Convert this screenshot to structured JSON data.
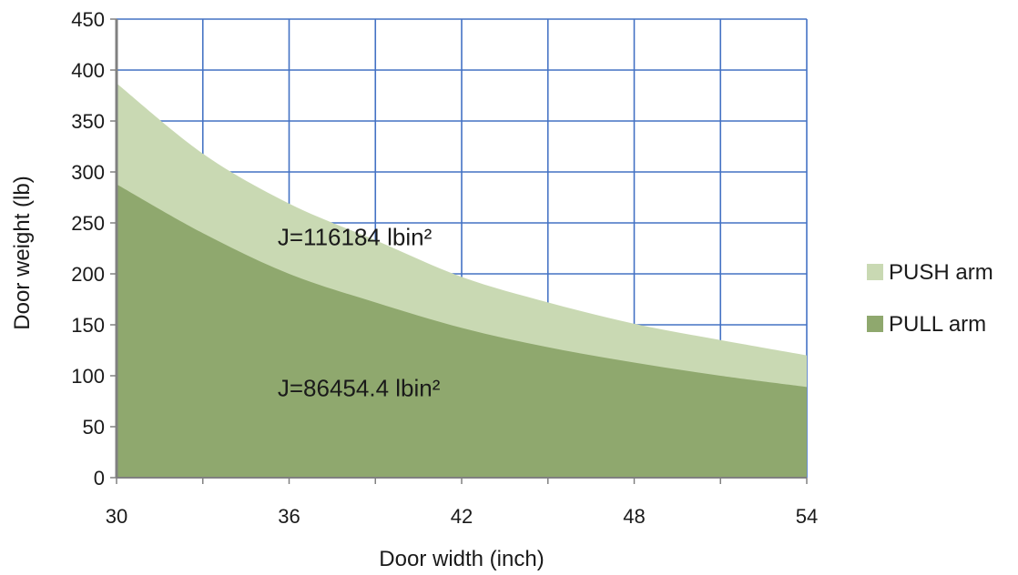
{
  "chart_data": {
    "type": "area",
    "title": "",
    "xlabel": "Door width (inch)",
    "ylabel": "Door weight (lb)",
    "xlim": [
      30,
      54
    ],
    "ylim": [
      0,
      450
    ],
    "x_ticks": [
      30,
      36,
      42,
      48,
      54
    ],
    "x_tick_labels": [
      "30",
      "36",
      "42",
      "48",
      "54"
    ],
    "y_ticks": [
      0,
      50,
      100,
      150,
      200,
      250,
      300,
      350,
      400,
      450
    ],
    "y_tick_labels": [
      "0",
      "50",
      "100",
      "150",
      "200",
      "250",
      "300",
      "350",
      "400",
      "450"
    ],
    "grid_x": [
      30,
      33,
      36,
      39,
      42,
      45,
      48,
      51,
      54
    ],
    "grid_y": [
      0,
      50,
      100,
      150,
      200,
      250,
      300,
      350,
      400,
      450
    ],
    "grid": true,
    "legend_position": "right",
    "series": [
      {
        "name": "PUSH arm",
        "color": "#c9d9b3",
        "x": [
          30,
          33,
          36,
          39,
          42,
          45,
          48,
          51,
          54
        ],
        "values": [
          387,
          318,
          269,
          233,
          197,
          172,
          151,
          135,
          120
        ]
      },
      {
        "name": "PULL arm",
        "color": "#8fa86e",
        "x": [
          30,
          33,
          36,
          39,
          42,
          45,
          48,
          51,
          54
        ],
        "values": [
          288,
          240,
          200,
          172,
          147,
          128,
          113,
          100,
          89
        ]
      }
    ],
    "annotations": [
      {
        "text": "J=116184 lbin²",
        "x": 35.6,
        "y": 228
      },
      {
        "text": "J=86454.4 lbin²",
        "x": 35.6,
        "y": 80
      }
    ]
  }
}
